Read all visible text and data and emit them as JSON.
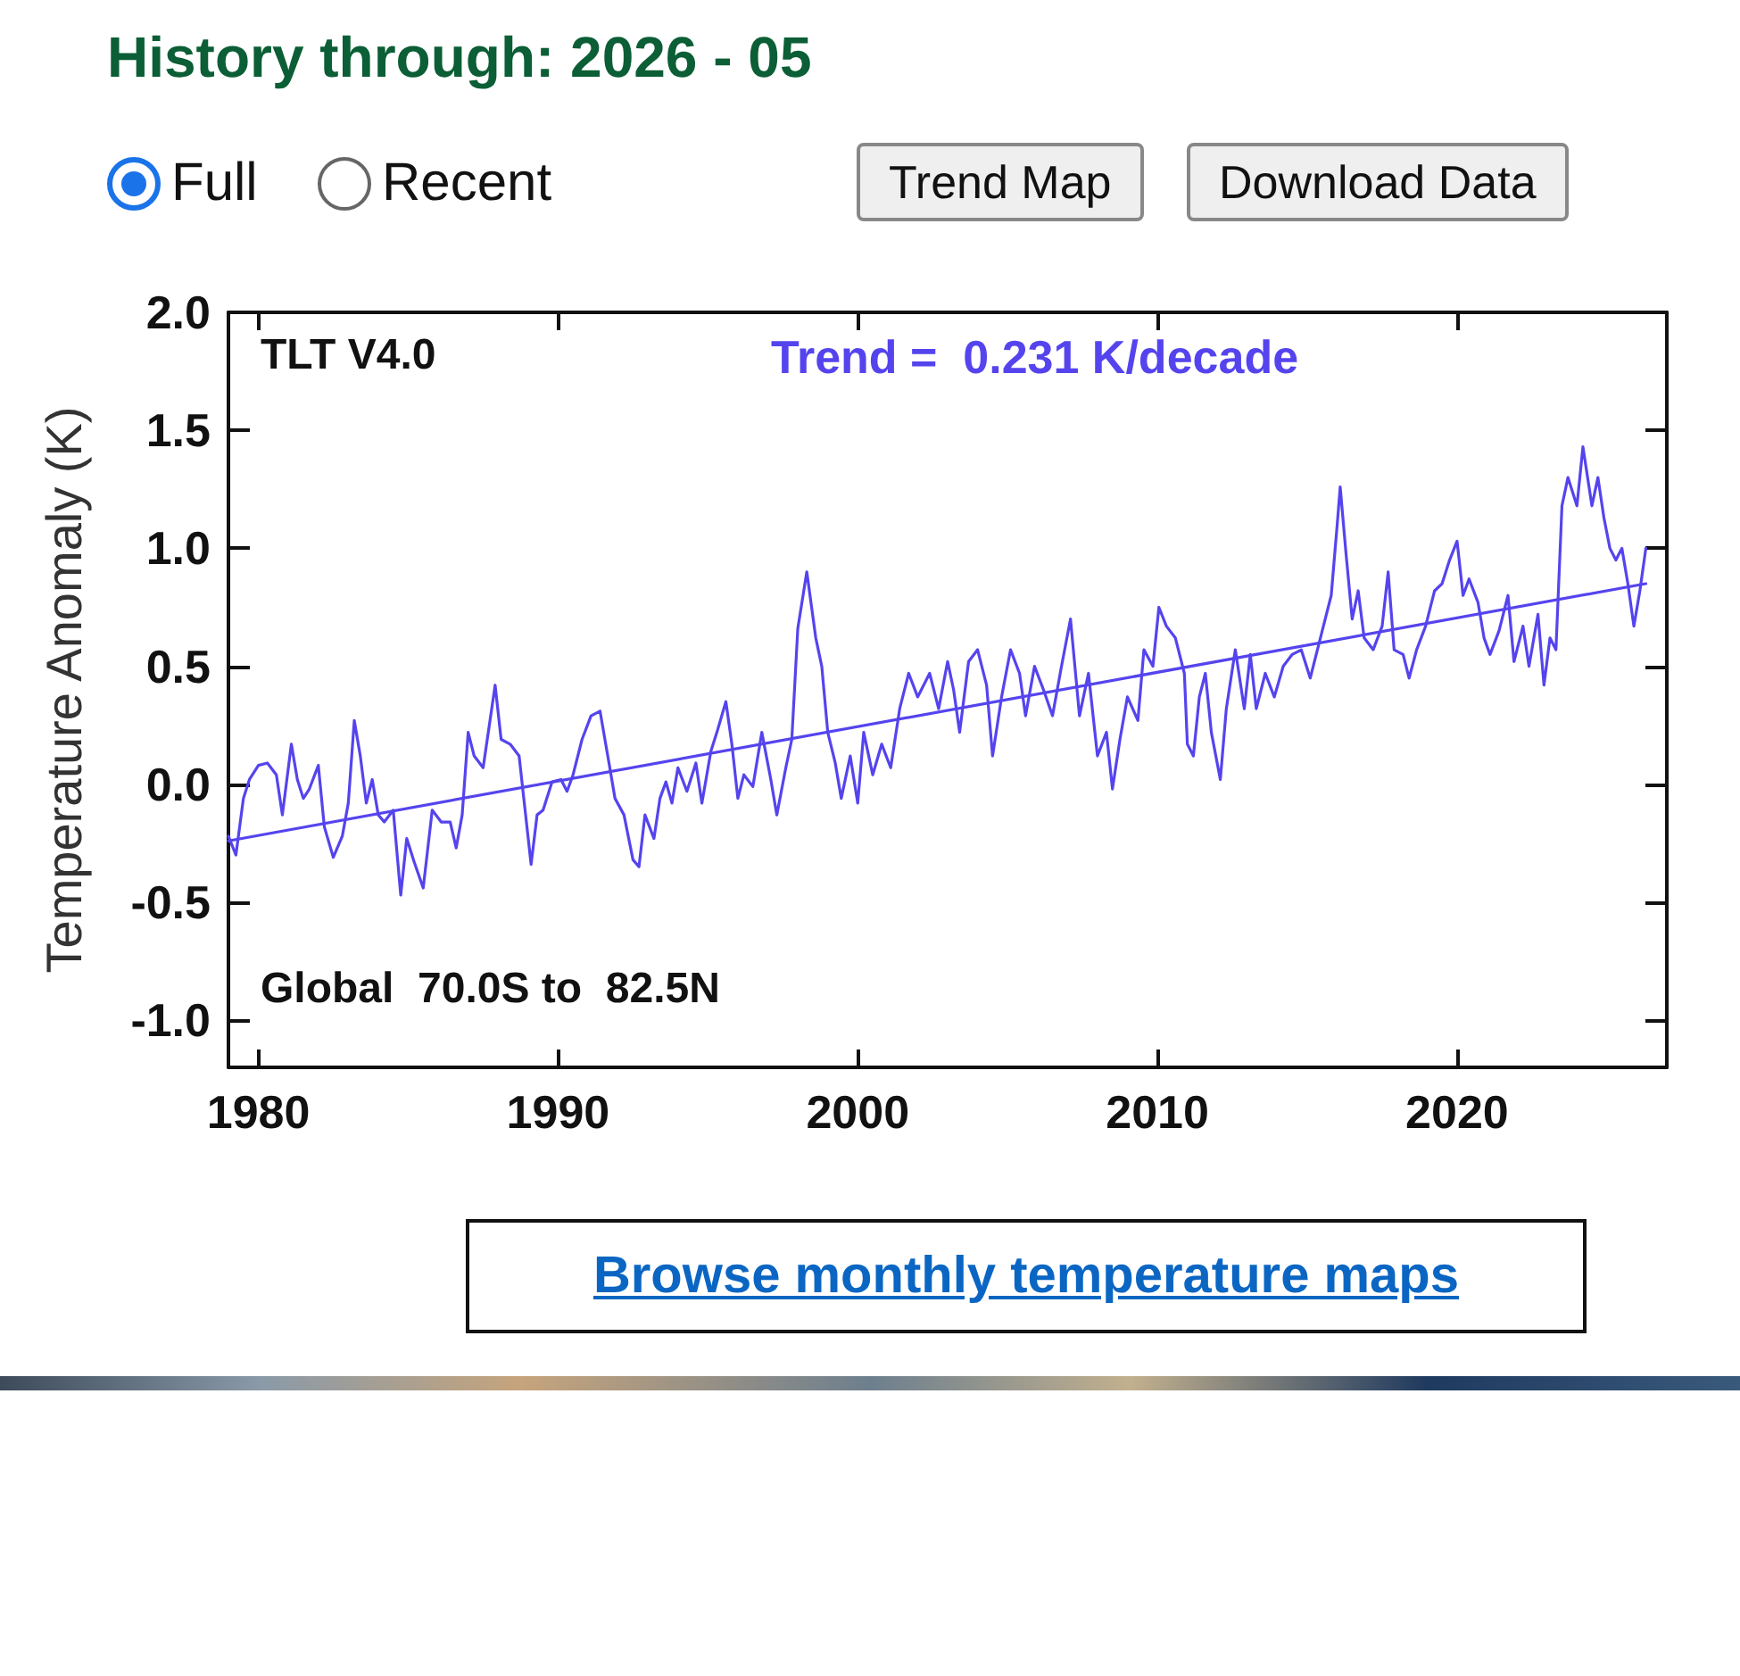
{
  "chart_data": {
    "type": "line",
    "title": "History through: 2026 - 05",
    "ylabel": "Temperature Anomaly (K)",
    "annotations": [
      "TLT V4.0",
      "Trend =  0.231 K/decade",
      "Global  70.0S to  82.5N",
      "Full",
      "Recent",
      "Trend Map",
      "Download Data",
      "Browse monthly temperature maps"
    ],
    "xlim": [
      1979,
      2027
    ],
    "xticks": [
      1980,
      1990,
      2000,
      2010,
      2020
    ],
    "ylim": [
      -1.2,
      2.0
    ],
    "yticks": [
      {
        "value": -1,
        "label": "-1.0"
      },
      {
        "value": -0.5,
        "label": "-0.5"
      },
      {
        "value": 0,
        "label": "0.0"
      },
      {
        "value": 0.5,
        "label": "0.5"
      },
      {
        "value": 1,
        "label": "1.0"
      },
      {
        "value": 1.5,
        "label": "1.5"
      },
      {
        "value": 2,
        "label": "2.0"
      }
    ],
    "marker": "none",
    "line_style": "solid",
    "series": [
      {
        "color": "#5544ee",
        "x": [
          1979.0,
          1979.25,
          1979.5,
          1979.7,
          1980.0,
          1980.3,
          1980.6,
          1980.8,
          1981.1,
          1981.3,
          1981.5,
          1981.7,
          1982.0,
          1982.2,
          1982.5,
          1982.8,
          1983.0,
          1983.2,
          1983.4,
          1983.6,
          1983.8,
          1984.0,
          1984.2,
          1984.5,
          1984.75,
          1984.95,
          1985.2,
          1985.5,
          1985.8,
          1986.1,
          1986.4,
          1986.6,
          1986.8,
          1987.0,
          1987.2,
          1987.5,
          1987.9,
          1988.1,
          1988.4,
          1988.7,
          1988.9,
          1989.1,
          1989.3,
          1989.5,
          1989.8,
          1990.1,
          1990.3,
          1990.5,
          1990.8,
          1991.1,
          1991.4,
          1991.7,
          1991.9,
          1992.2,
          1992.5,
          1992.7,
          1992.9,
          1993.2,
          1993.4,
          1993.6,
          1993.8,
          1994.0,
          1994.3,
          1994.6,
          1994.8,
          1995.1,
          1995.3,
          1995.6,
          1995.8,
          1996.0,
          1996.2,
          1996.5,
          1996.8,
          1997.1,
          1997.3,
          1997.6,
          1997.8,
          1998.0,
          1998.3,
          1998.6,
          1998.8,
          1999.0,
          1999.25,
          1999.45,
          1999.75,
          2000.0,
          2000.2,
          2000.5,
          2000.8,
          2001.1,
          2001.4,
          2001.7,
          2002.0,
          2002.4,
          2002.7,
          2003.0,
          2003.2,
          2003.4,
          2003.7,
          2004.0,
          2004.3,
          2004.5,
          2004.8,
          2005.1,
          2005.4,
          2005.6,
          2005.9,
          2006.2,
          2006.5,
          2006.8,
          2007.1,
          2007.4,
          2007.7,
          2008.0,
          2008.3,
          2008.5,
          2008.75,
          2009.0,
          2009.35,
          2009.55,
          2009.85,
          2010.05,
          2010.3,
          2010.6,
          2010.9,
          2011.0,
          2011.2,
          2011.4,
          2011.6,
          2011.8,
          2012.1,
          2012.3,
          2012.6,
          2012.9,
          2013.1,
          2013.3,
          2013.6,
          2013.9,
          2014.2,
          2014.5,
          2014.8,
          2015.1,
          2015.4,
          2015.6,
          2015.8,
          2016.0,
          2016.1,
          2016.3,
          2016.5,
          2016.7,
          2016.9,
          2017.2,
          2017.5,
          2017.7,
          2017.9,
          2018.2,
          2018.4,
          2018.65,
          2018.95,
          2019.25,
          2019.5,
          2019.75,
          2020.0,
          2020.2,
          2020.4,
          2020.7,
          2020.9,
          2021.1,
          2021.4,
          2021.7,
          2021.9,
          2022.2,
          2022.4,
          2022.7,
          2022.9,
          2023.1,
          2023.3,
          2023.5,
          2023.7,
          2024.0,
          2024.2,
          2024.5,
          2024.7,
          2024.9,
          2025.1,
          2025.3,
          2025.5,
          2025.7,
          2025.9,
          2026.1,
          2026.3
        ],
        "values": [
          -0.22,
          -0.3,
          -0.06,
          0.02,
          0.08,
          0.09,
          0.04,
          -0.13,
          0.17,
          0.02,
          -0.06,
          -0.02,
          0.08,
          -0.18,
          -0.31,
          -0.22,
          -0.08,
          0.27,
          0.12,
          -0.08,
          0.02,
          -0.13,
          -0.16,
          -0.11,
          -0.47,
          -0.23,
          -0.33,
          -0.44,
          -0.11,
          -0.16,
          -0.16,
          -0.27,
          -0.13,
          0.22,
          0.12,
          0.07,
          0.42,
          0.19,
          0.17,
          0.12,
          -0.11,
          -0.34,
          -0.13,
          -0.11,
          0.01,
          0.02,
          -0.03,
          0.04,
          0.19,
          0.29,
          0.31,
          0.09,
          -0.06,
          -0.13,
          -0.32,
          -0.35,
          -0.13,
          -0.23,
          -0.06,
          0.01,
          -0.08,
          0.07,
          -0.03,
          0.09,
          -0.08,
          0.14,
          0.22,
          0.35,
          0.17,
          -0.06,
          0.04,
          -0.01,
          0.22,
          0.02,
          -0.13,
          0.07,
          0.19,
          0.66,
          0.9,
          0.62,
          0.5,
          0.22,
          0.09,
          -0.06,
          0.12,
          -0.08,
          0.22,
          0.04,
          0.17,
          0.07,
          0.32,
          0.47,
          0.37,
          0.47,
          0.32,
          0.52,
          0.4,
          0.22,
          0.52,
          0.57,
          0.42,
          0.12,
          0.37,
          0.57,
          0.47,
          0.29,
          0.5,
          0.4,
          0.29,
          0.5,
          0.7,
          0.29,
          0.47,
          0.12,
          0.22,
          -0.02,
          0.19,
          0.37,
          0.27,
          0.57,
          0.5,
          0.75,
          0.67,
          0.62,
          0.47,
          0.17,
          0.12,
          0.37,
          0.47,
          0.22,
          0.02,
          0.32,
          0.57,
          0.32,
          0.55,
          0.32,
          0.47,
          0.37,
          0.5,
          0.55,
          0.57,
          0.45,
          0.6,
          0.7,
          0.8,
          1.1,
          1.26,
          0.97,
          0.7,
          0.82,
          0.62,
          0.57,
          0.67,
          0.9,
          0.57,
          0.55,
          0.45,
          0.57,
          0.67,
          0.82,
          0.85,
          0.95,
          1.03,
          0.8,
          0.87,
          0.77,
          0.62,
          0.55,
          0.65,
          0.8,
          0.52,
          0.67,
          0.5,
          0.72,
          0.42,
          0.62,
          0.57,
          1.18,
          1.3,
          1.18,
          1.43,
          1.18,
          1.3,
          1.13,
          1.0,
          0.95,
          1.0,
          0.85,
          0.67,
          0.82,
          1.0
        ]
      },
      {
        "color": "#5544ee",
        "x": [
          1979.0,
          2026.3
        ],
        "values": [
          -0.24,
          0.85
        ]
      }
    ]
  }
}
